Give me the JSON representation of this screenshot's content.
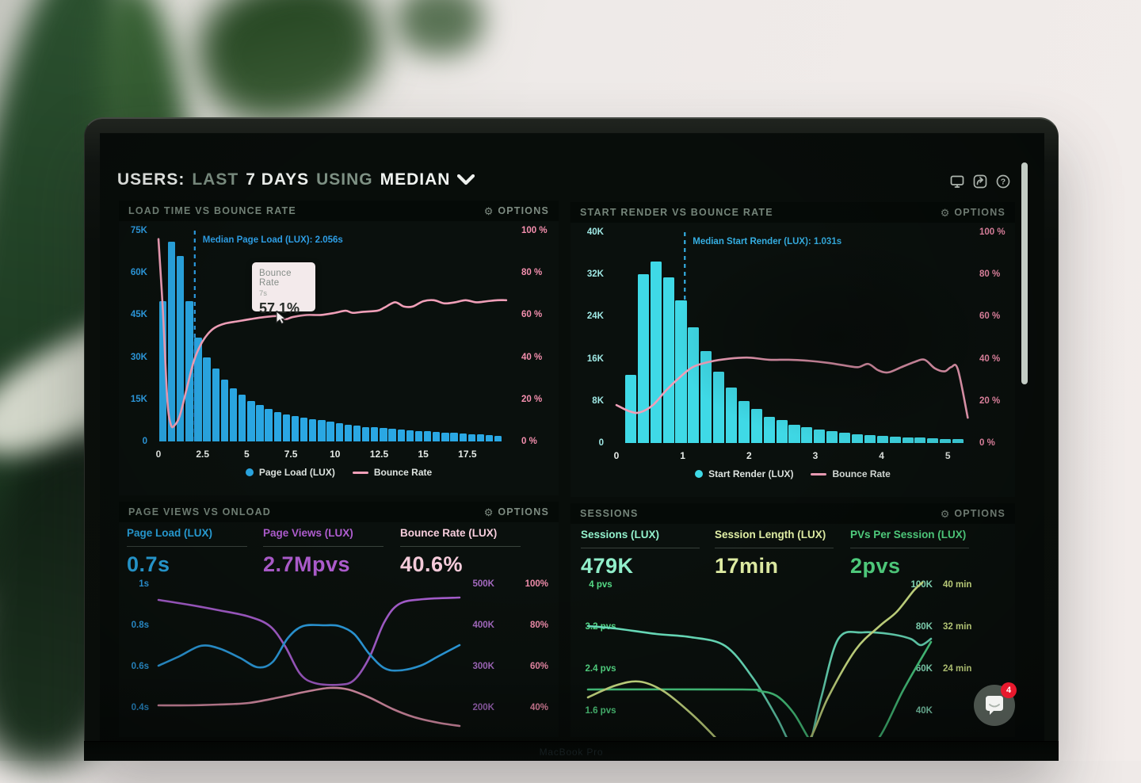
{
  "window": {
    "brand_label": "MacBook Pro"
  },
  "header": {
    "segments": [
      {
        "text": "USERS:",
        "tone": "bright"
      },
      {
        "text": "LAST",
        "tone": "muted"
      },
      {
        "text": "7 DAYS",
        "tone": "bright"
      },
      {
        "text": "USING",
        "tone": "muted"
      },
      {
        "text": "MEDIAN",
        "tone": "bright"
      }
    ],
    "dropdown_icon": "chevron-down-icon",
    "icons": [
      "display-icon",
      "share-icon",
      "help-icon"
    ]
  },
  "options_label": "OPTIONS",
  "gear_icon": "⚙",
  "chat": {
    "icon": "chat-bubble-icon",
    "badge": "4"
  },
  "chart_data": [
    {
      "type": "bar",
      "title": "LOAD TIME VS BOUNCE RATE",
      "bar_series": {
        "name": "Page Load (LUX)",
        "color": "#2aa7e3",
        "start_x": 0,
        "step": 0.5,
        "values_k": [
          50,
          71,
          66,
          50,
          37,
          30,
          26,
          22,
          19,
          16.5,
          14.5,
          13,
          11.5,
          10.5,
          9.5,
          9,
          8.5,
          8,
          7.5,
          7,
          6.5,
          6,
          5.5,
          5.2,
          5,
          4.8,
          4.5,
          4.3,
          4,
          3.8,
          3.6,
          3.4,
          3.2,
          3,
          2.8,
          2.6,
          2.4,
          2.2,
          2
        ]
      },
      "line_series": {
        "name": "Bounce Rate",
        "color": "#f09fb8",
        "points_x_pct": [
          [
            0,
            96
          ],
          [
            0.25,
            62
          ],
          [
            0.5,
            20
          ],
          [
            0.7,
            8
          ],
          [
            0.9,
            7.5
          ],
          [
            1.2,
            12
          ],
          [
            1.6,
            25
          ],
          [
            2,
            38
          ],
          [
            2.4,
            46
          ],
          [
            2.8,
            51
          ],
          [
            3.2,
            54
          ],
          [
            3.8,
            56
          ],
          [
            4.5,
            57
          ],
          [
            5.2,
            58
          ],
          [
            6,
            59
          ],
          [
            6.8,
            59.5
          ],
          [
            7.2,
            58
          ],
          [
            7.6,
            59
          ],
          [
            8.4,
            60
          ],
          [
            9.2,
            60
          ],
          [
            10,
            61
          ],
          [
            10.6,
            62
          ],
          [
            11,
            61
          ],
          [
            11.6,
            61.5
          ],
          [
            12.4,
            62
          ],
          [
            12.8,
            63.5
          ],
          [
            13.4,
            66
          ],
          [
            13.9,
            64
          ],
          [
            14.4,
            64
          ],
          [
            15,
            66.5
          ],
          [
            15.6,
            67
          ],
          [
            16.2,
            65.5
          ],
          [
            16.8,
            66
          ],
          [
            17.4,
            67
          ],
          [
            18,
            66
          ],
          [
            18.6,
            66.5
          ],
          [
            19.2,
            67
          ],
          [
            19.7,
            67
          ]
        ]
      },
      "x_axis": {
        "max": 20.2,
        "ticks": [
          [
            0,
            "0"
          ],
          [
            2.5,
            "2.5"
          ],
          [
            5,
            "5"
          ],
          [
            7.5,
            "7.5"
          ],
          [
            10,
            "10"
          ],
          [
            12.5,
            "12.5"
          ],
          [
            15,
            "15"
          ],
          [
            17.5,
            "17.5"
          ]
        ]
      },
      "y_left": {
        "max_k": 75,
        "labels": [
          "75K",
          "60K",
          "45K",
          "30K",
          "15K",
          "0"
        ],
        "color": "#2e9fe6"
      },
      "y_right": {
        "labels": [
          "100 %",
          "80 %",
          "60 %",
          "40 %",
          "20 %",
          "0 %"
        ],
        "color": "#f48fae"
      },
      "median_line": {
        "x": 2.056,
        "label": "Median Page Load (LUX): 2.056s",
        "color": "#2e9fe6"
      },
      "tooltip": {
        "title": "Bounce Rate",
        "subtitle": "7s",
        "value": "57.1%"
      },
      "legend": [
        {
          "name": "Page Load (LUX)",
          "marker": "dot",
          "color": "#2aa7e3"
        },
        {
          "name": "Bounce Rate",
          "marker": "line",
          "color": "#f09fb8"
        }
      ]
    },
    {
      "type": "bar",
      "title": "START RENDER VS BOUNCE RATE",
      "bar_series": {
        "name": "Start Render (LUX)",
        "color": "#3fd9e6",
        "start_x": 0.12,
        "step": 0.19,
        "values_k": [
          13,
          32,
          34.5,
          31.5,
          27,
          22,
          17.5,
          13.5,
          10.5,
          8,
          6.5,
          5,
          4.3,
          3.5,
          3,
          2.5,
          2.2,
          1.9,
          1.7,
          1.5,
          1.3,
          1.2,
          1.1,
          1,
          0.9,
          0.8,
          0.7
        ]
      },
      "line_series": {
        "name": "Bounce Rate",
        "color": "#f09fb8",
        "points_x_pct": [
          [
            0,
            18
          ],
          [
            0.2,
            15
          ],
          [
            0.35,
            14.5
          ],
          [
            0.55,
            18
          ],
          [
            0.75,
            25
          ],
          [
            0.95,
            31
          ],
          [
            1.15,
            36
          ],
          [
            1.4,
            38.5
          ],
          [
            1.7,
            40
          ],
          [
            2,
            40.5
          ],
          [
            2.3,
            39.5
          ],
          [
            2.6,
            39.5
          ],
          [
            2.9,
            39
          ],
          [
            3.2,
            38
          ],
          [
            3.5,
            36.5
          ],
          [
            3.65,
            36
          ],
          [
            3.8,
            37.5
          ],
          [
            3.95,
            34.5
          ],
          [
            4.1,
            33.5
          ],
          [
            4.3,
            36
          ],
          [
            4.5,
            38.5
          ],
          [
            4.65,
            39.5
          ],
          [
            4.8,
            35.5
          ],
          [
            4.95,
            34
          ],
          [
            5.05,
            36
          ],
          [
            5.15,
            35
          ],
          [
            5.3,
            12
          ]
        ]
      },
      "x_axis": {
        "max": 5.2,
        "ticks": [
          [
            0,
            "0"
          ],
          [
            1,
            "1"
          ],
          [
            2,
            "2"
          ],
          [
            3,
            "3"
          ],
          [
            4,
            "4"
          ],
          [
            5,
            "5"
          ]
        ]
      },
      "y_left": {
        "max_k": 40,
        "labels": [
          "40K",
          "32K",
          "24K",
          "16K",
          "8K",
          "0"
        ],
        "color": "#9fe8e4"
      },
      "y_right": {
        "labels": [
          "100 %",
          "80 %",
          "60 %",
          "40 %",
          "20 %",
          "0 %"
        ],
        "color": "#f48fae"
      },
      "median_line": {
        "x": 1.031,
        "label": "Median Start Render (LUX): 1.031s",
        "color": "#35aee2"
      },
      "legend": [
        {
          "name": "Start Render (LUX)",
          "marker": "dot",
          "color": "#3fd9e6"
        },
        {
          "name": "Bounce Rate",
          "marker": "line",
          "color": "#f09fb8"
        }
      ]
    },
    {
      "type": "line",
      "title": "PAGE VIEWS VS ONLOAD",
      "metrics": [
        {
          "label": "Page Load (LUX)",
          "value": "0.7s",
          "color": "#2aa7e3"
        },
        {
          "label": "Page Views (LUX)",
          "value": "2.7Mpvs",
          "color": "#b35fd4"
        },
        {
          "label": "Bounce Rate (LUX)",
          "value": "40.6%",
          "color": "#f8cedd"
        }
      ],
      "y_left": {
        "labels": [
          "1s",
          "0.8s",
          "0.6s",
          "0.4s"
        ],
        "color": "#2e9fe6"
      },
      "y_right": [
        {
          "labels": [
            "500K",
            "400K",
            "300K",
            "200K"
          ],
          "color": "#a86cc4"
        },
        {
          "labels": [
            "100%",
            "80%",
            "60%",
            "40%"
          ],
          "color": "#f48fae"
        }
      ],
      "lines": [
        {
          "name": "Page Views",
          "color": "#a85fd0",
          "points": [
            [
              0,
              0.135
            ],
            [
              0.1,
              0.165
            ],
            [
              0.2,
              0.2
            ],
            [
              0.3,
              0.24
            ],
            [
              0.37,
              0.3
            ],
            [
              0.42,
              0.425
            ],
            [
              0.47,
              0.6
            ],
            [
              0.52,
              0.66
            ],
            [
              0.6,
              0.67
            ],
            [
              0.65,
              0.64
            ],
            [
              0.7,
              0.5
            ],
            [
              0.75,
              0.275
            ],
            [
              0.8,
              0.16
            ],
            [
              0.88,
              0.13
            ],
            [
              1,
              0.12
            ]
          ]
        },
        {
          "name": "Page Load",
          "color": "#2d9fe2",
          "points": [
            [
              0,
              0.55
            ],
            [
              0.07,
              0.49
            ],
            [
              0.14,
              0.425
            ],
            [
              0.2,
              0.44
            ],
            [
              0.27,
              0.5
            ],
            [
              0.33,
              0.56
            ],
            [
              0.38,
              0.525
            ],
            [
              0.43,
              0.375
            ],
            [
              0.48,
              0.3
            ],
            [
              0.55,
              0.295
            ],
            [
              0.6,
              0.3
            ],
            [
              0.65,
              0.35
            ],
            [
              0.7,
              0.475
            ],
            [
              0.75,
              0.565
            ],
            [
              0.8,
              0.58
            ],
            [
              0.87,
              0.55
            ],
            [
              0.93,
              0.49
            ],
            [
              1,
              0.42
            ]
          ]
        },
        {
          "name": "Bounce Rate",
          "color": "#ef9db8",
          "points": [
            [
              0,
              0.8
            ],
            [
              0.1,
              0.8
            ],
            [
              0.2,
              0.795
            ],
            [
              0.3,
              0.785
            ],
            [
              0.4,
              0.75
            ],
            [
              0.5,
              0.71
            ],
            [
              0.57,
              0.69
            ],
            [
              0.63,
              0.7
            ],
            [
              0.7,
              0.75
            ],
            [
              0.78,
              0.825
            ],
            [
              0.85,
              0.875
            ],
            [
              0.93,
              0.91
            ],
            [
              1,
              0.93
            ]
          ]
        }
      ]
    },
    {
      "type": "line",
      "title": "SESSIONS",
      "metrics": [
        {
          "label": "Sessions (LUX)",
          "value": "479K",
          "color": "#93f2cd"
        },
        {
          "label": "Session Length (LUX)",
          "value": "17min",
          "color": "#e9f7ab"
        },
        {
          "label": "PVs Per Session (LUX)",
          "value": "2pvs",
          "color": "#57e089"
        }
      ],
      "y_left": {
        "labels": [
          "4 pvs",
          "3.2 pvs",
          "2.4 pvs",
          "1.6 pvs"
        ],
        "color": "#57e089"
      },
      "y_right": [
        {
          "labels": [
            "100K",
            "80K",
            "60K",
            "40K"
          ],
          "color": "#93f2cd"
        },
        {
          "labels": [
            "40 min",
            "32 min",
            "24 min",
            ""
          ],
          "color": "#d9ee8d"
        }
      ],
      "lines": [
        {
          "name": "Sessions",
          "color": "#6ee8c4",
          "points": [
            [
              0,
              0.3
            ],
            [
              0.08,
              0.315
            ],
            [
              0.2,
              0.35
            ],
            [
              0.3,
              0.37
            ],
            [
              0.4,
              0.425
            ],
            [
              0.48,
              0.625
            ],
            [
              0.55,
              0.875
            ],
            [
              0.6,
              1.08
            ],
            [
              0.64,
              1.08
            ],
            [
              0.68,
              0.75
            ],
            [
              0.73,
              0.38
            ],
            [
              0.8,
              0.34
            ],
            [
              0.88,
              0.35
            ],
            [
              0.94,
              0.38
            ],
            [
              0.97,
              0.42
            ],
            [
              1,
              0.38
            ]
          ]
        },
        {
          "name": "PVs Per Session",
          "color": "#4fdc8c",
          "points": [
            [
              0,
              0.7
            ],
            [
              0.45,
              0.7
            ],
            [
              0.5,
              0.71
            ],
            [
              0.55,
              0.74
            ],
            [
              0.6,
              0.85
            ],
            [
              0.65,
              1.03
            ],
            [
              0.7,
              1.15
            ],
            [
              0.78,
              1.15
            ],
            [
              0.85,
              1
            ],
            [
              0.92,
              0.7
            ],
            [
              1,
              0.4
            ]
          ]
        },
        {
          "name": "Session Length",
          "color": "#d9ee8d",
          "points": [
            [
              0,
              0.75
            ],
            [
              0.08,
              0.675
            ],
            [
              0.15,
              0.65
            ],
            [
              0.22,
              0.71
            ],
            [
              0.3,
              0.85
            ],
            [
              0.37,
              1
            ],
            [
              0.42,
              1.125
            ],
            [
              0.6,
              1.125
            ],
            [
              0.65,
              1
            ],
            [
              0.7,
              0.75
            ],
            [
              0.78,
              0.45
            ],
            [
              0.85,
              0.3
            ],
            [
              0.9,
              0.21
            ],
            [
              0.95,
              0.075
            ],
            [
              0.975,
              0.025
            ]
          ]
        }
      ]
    }
  ]
}
